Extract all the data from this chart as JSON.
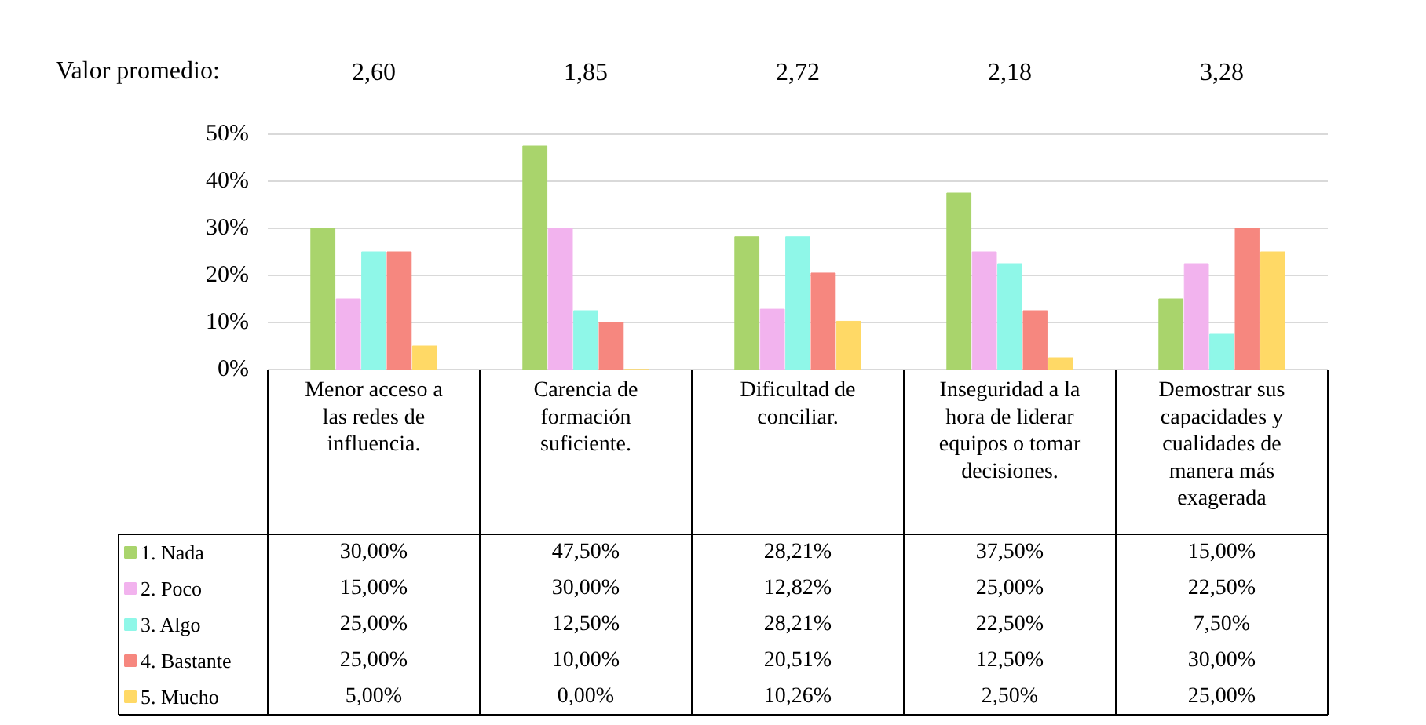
{
  "chart_data": {
    "type": "bar",
    "annotations": [
      "Valor promedio:",
      "2,60",
      "1,85",
      "2,72",
      "2,18",
      "3,28"
    ],
    "categories": [
      "Menor acceso a las redes de influencia.",
      "Carencia de formación suficiente.",
      "Dificultad de conciliar.",
      "Inseguridad a la hora de liderar equipos o tomar decisiones.",
      "Demostrar sus capacidades y cualidades de manera más exagerada"
    ],
    "series": [
      {
        "name": "1. Nada",
        "color": "#a9d46c",
        "values": [
          30.0,
          47.5,
          28.21,
          37.5,
          15.0
        ],
        "value_labels": [
          "30,00%",
          "47,50%",
          "28,21%",
          "37,50%",
          "15,00%"
        ]
      },
      {
        "name": "2. Poco",
        "color": "#f2b3ee",
        "values": [
          15.0,
          30.0,
          12.82,
          25.0,
          22.5
        ],
        "value_labels": [
          "15,00%",
          "30,00%",
          "12,82%",
          "25,00%",
          "22,50%"
        ]
      },
      {
        "name": "3. Algo",
        "color": "#8ff7e8",
        "values": [
          25.0,
          12.5,
          28.21,
          22.5,
          7.5
        ],
        "value_labels": [
          "25,00%",
          "12,50%",
          "28,21%",
          "22,50%",
          "7,50%"
        ]
      },
      {
        "name": "4. Bastante",
        "color": "#f6877f",
        "values": [
          25.0,
          10.0,
          20.51,
          12.5,
          30.0
        ],
        "value_labels": [
          "25,00%",
          "10,00%",
          "20,51%",
          "12,50%",
          "30,00%"
        ]
      },
      {
        "name": "5. Mucho",
        "color": "#ffd966",
        "values": [
          5.0,
          0.0,
          10.26,
          2.5,
          25.0
        ],
        "value_labels": [
          "5,00%",
          "0,00%",
          "10,26%",
          "2,50%",
          "25,00%"
        ]
      }
    ],
    "ylim": [
      0,
      50
    ],
    "yticks": [
      {
        "value": 0,
        "label": "0%"
      },
      {
        "value": 10,
        "label": "10%"
      },
      {
        "value": 20,
        "label": "20%"
      },
      {
        "value": 30,
        "label": "30%"
      },
      {
        "value": 40,
        "label": "40%"
      },
      {
        "value": 50,
        "label": "50%"
      }
    ],
    "grid": "y",
    "legend": "bottom"
  }
}
